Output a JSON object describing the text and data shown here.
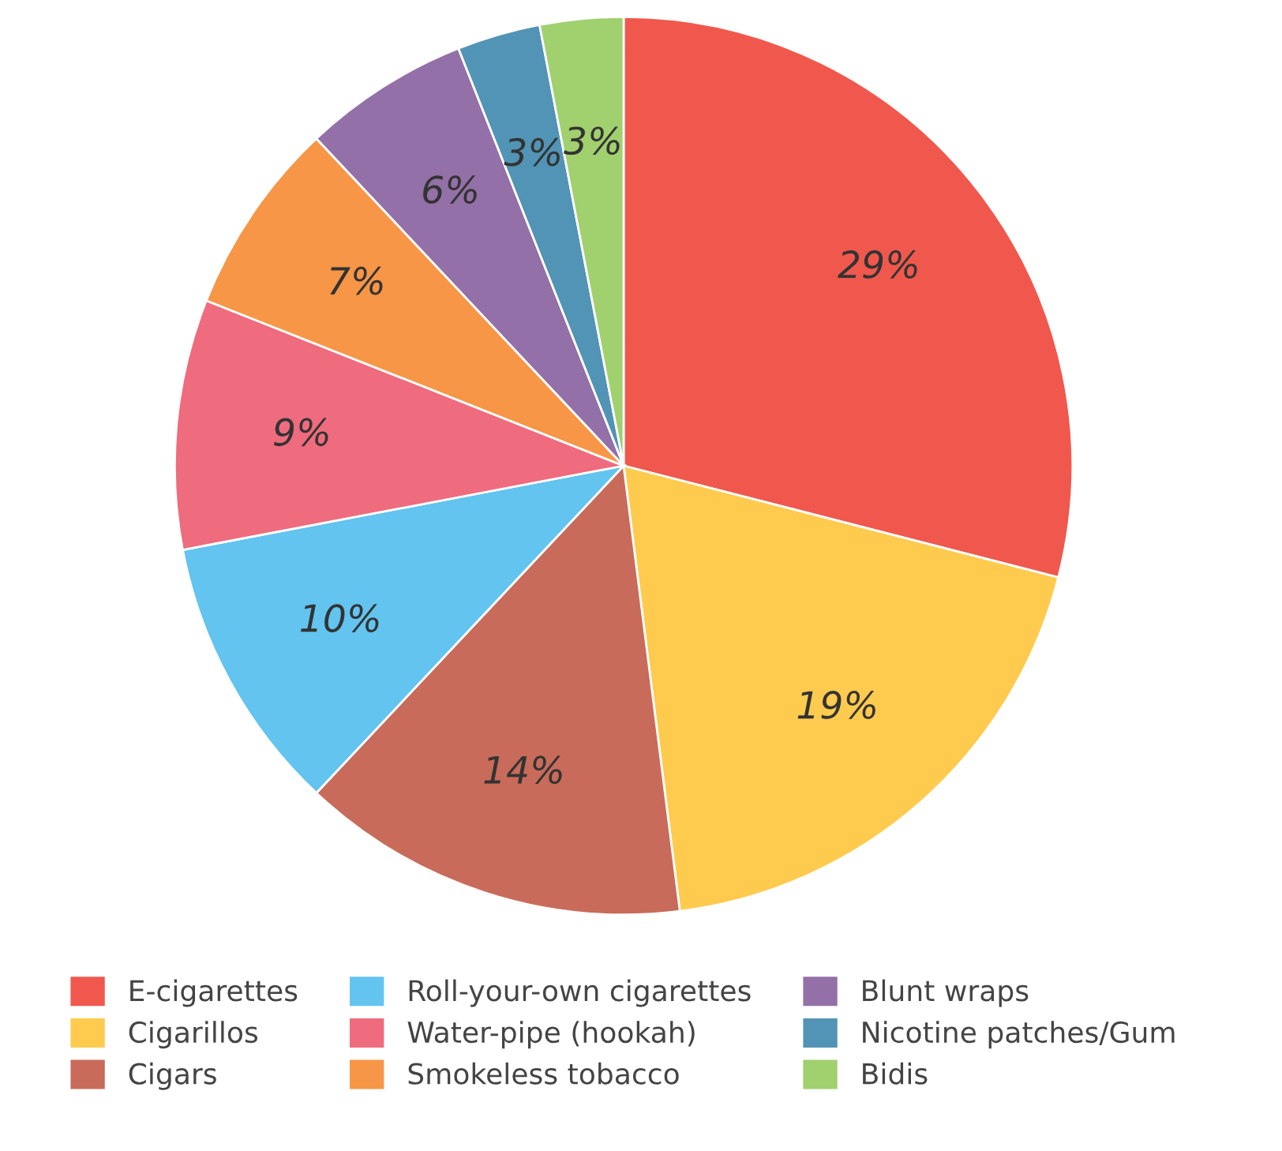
{
  "chart_data": {
    "type": "pie",
    "categories": [
      "E-cigarettes",
      "Cigarillos",
      "Cigars",
      "Roll-your-own cigarettes",
      "Water-pipe (hookah)",
      "Smokeless tobacco",
      "Blunt wraps",
      "Nicotine patches/Gum",
      "Bidis"
    ],
    "values": [
      29,
      19,
      14,
      10,
      9,
      7,
      6,
      3,
      3
    ],
    "colors": [
      "#f0584d",
      "#fecb4e",
      "#c96b5a",
      "#62c4ef",
      "#ef6b7e",
      "#f79646",
      "#9370a8",
      "#5294b5",
      "#a1d06e"
    ],
    "value_labels": [
      "29%",
      "19%",
      "14%",
      "10%",
      "9%",
      "7%",
      "6%",
      "3%",
      "3%"
    ],
    "legend": "bottom"
  }
}
